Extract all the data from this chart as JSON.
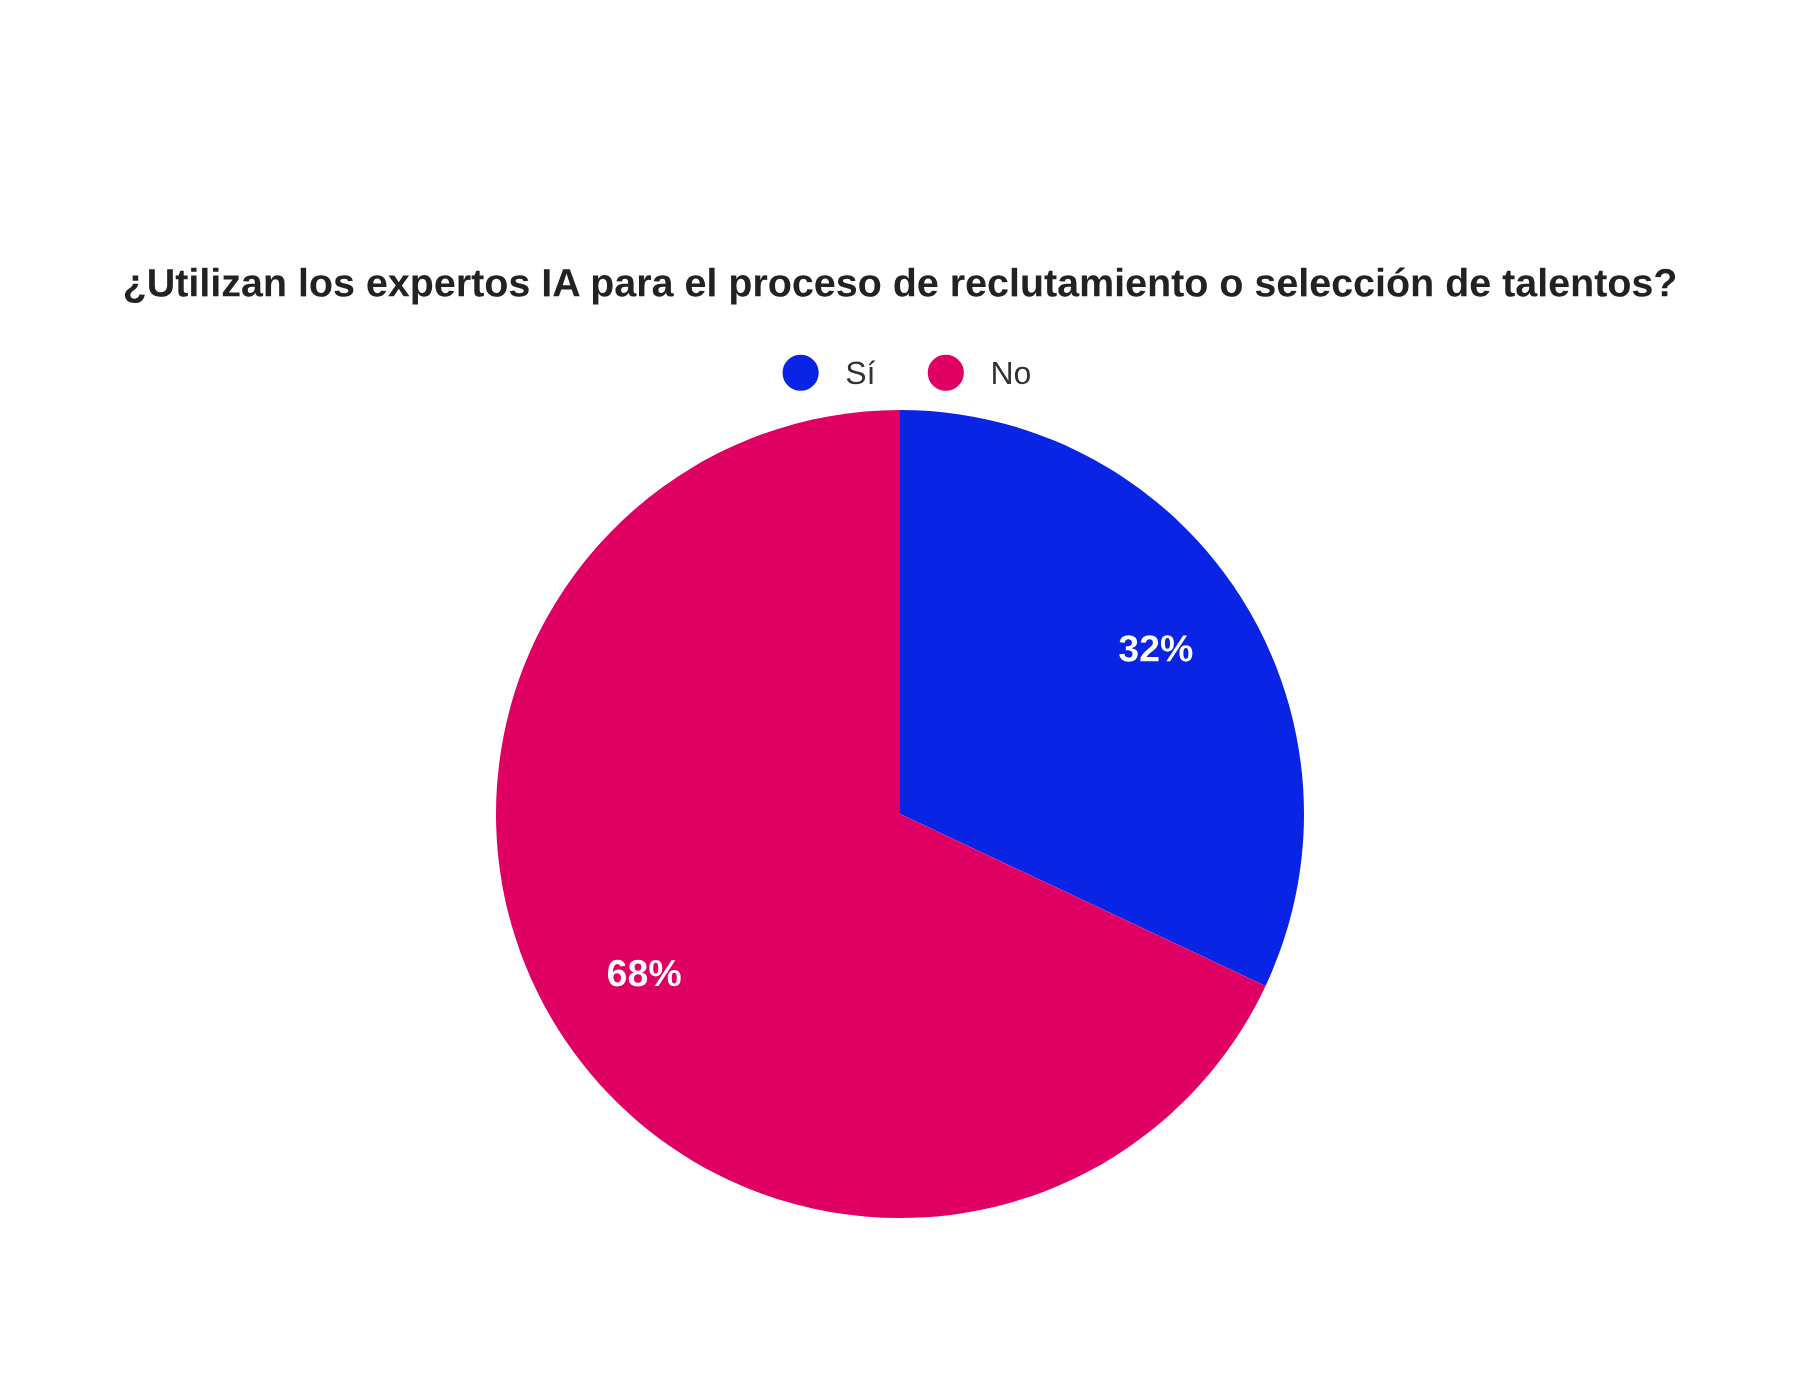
{
  "chart_data": {
    "type": "pie",
    "title": "¿Utilizan los expertos IA para el proceso de reclutamiento o selección de talentos?",
    "categories": [
      "Sí",
      "No"
    ],
    "values": [
      32,
      68
    ],
    "colors": [
      "#0a24e6",
      "#e00064"
    ],
    "value_labels": [
      "32%",
      "68%"
    ],
    "legend": "top"
  }
}
